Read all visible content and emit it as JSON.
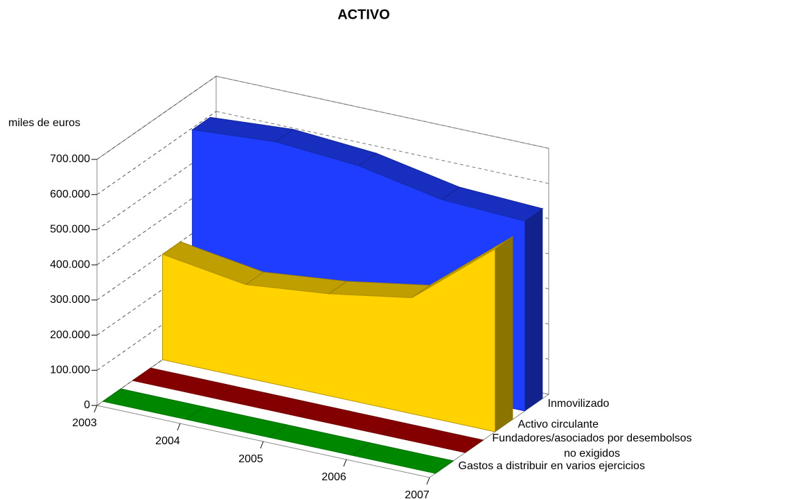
{
  "chart_data": {
    "type": "area3d",
    "title": "ACTIVO",
    "y_axis_label": "miles de euros",
    "categories": [
      "2003",
      "2004",
      "2005",
      "2006",
      "2007"
    ],
    "series": [
      {
        "name": "Inmovilizado",
        "color": "#1f3dff",
        "values": [
          595000,
          612000,
          595000,
          550000,
          540000
        ]
      },
      {
        "name": "Activo circulante",
        "color": "#ffd200",
        "values": [
          300000,
          265000,
          290000,
          330000,
          520000
        ]
      },
      {
        "name": "Fundadores/asociados por desembolsos no exigidos",
        "color": "#b00000",
        "values": [
          0,
          0,
          0,
          0,
          0
        ]
      },
      {
        "name": "Gastos a distribuir en varios ejercicios",
        "color": "#00b400",
        "values": [
          0,
          0,
          0,
          0,
          0
        ]
      }
    ],
    "ylim": [
      0,
      700000
    ],
    "yticks": [
      0,
      {
        "value": 100000,
        "label": "100.000"
      },
      {
        "value": 200000,
        "label": "200.000"
      },
      {
        "value": 300000,
        "label": "300.000"
      },
      {
        "value": 400000,
        "label": "400.000"
      },
      {
        "value": 500000,
        "label": "500.000"
      },
      {
        "value": 600000,
        "label": "600.000"
      },
      {
        "value": 700000,
        "label": "700.000"
      }
    ],
    "grid": true
  }
}
